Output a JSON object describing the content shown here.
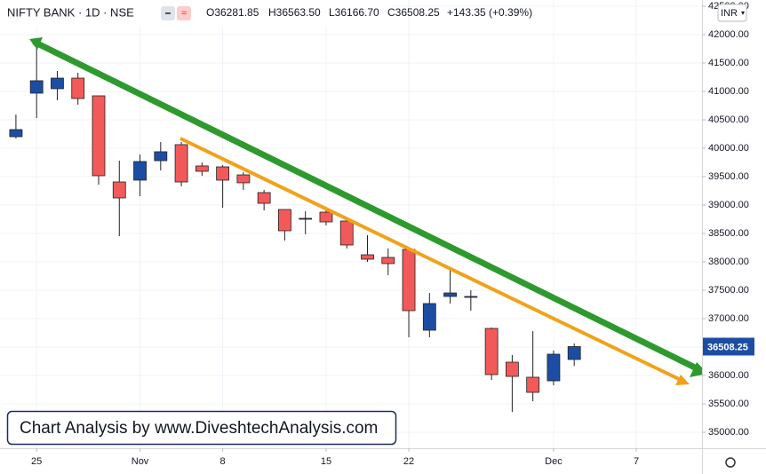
{
  "chart_data": {
    "type": "candlestick",
    "header": {
      "symbol": "NIFTY BANK · 1D · NSE",
      "open": "O36281.85",
      "high": "H36563.50",
      "low": "L36166.70",
      "close": "C36508.25",
      "change": "+143.35 (+0.39%)"
    },
    "currency": "INR",
    "watermark": "Chart Analysis by www.DiveshtechAnalysis.com",
    "x": [
      0,
      1,
      2,
      3,
      4,
      5,
      6,
      7,
      8,
      9,
      10,
      11,
      12,
      13,
      14,
      15,
      16,
      17,
      18,
      19,
      20,
      21,
      22,
      23,
      24,
      25,
      26,
      27
    ],
    "open": [
      40203,
      40969,
      41047,
      41234,
      40922,
      39406,
      39438,
      39781,
      40063,
      39688,
      39672,
      39531,
      39219,
      38922,
      38750,
      38875,
      38719,
      38125,
      38078,
      38219,
      36797,
      37391,
      37375,
      36828,
      36234,
      35969,
      35906,
      36281.85
    ],
    "high": [
      40594,
      41797,
      41359,
      41328,
      40922,
      39781,
      39891,
      40109,
      40109,
      39750,
      39703,
      39578,
      39266,
      38922,
      38891,
      38969,
      38734,
      38469,
      38234,
      38250,
      37453,
      37906,
      37500,
      36844,
      36359,
      36781,
      36438,
      36563.5
    ],
    "low": [
      40172,
      40531,
      40844,
      40766,
      39359,
      38453,
      39156,
      39609,
      39328,
      39516,
      38953,
      39266,
      38906,
      38375,
      38484,
      38641,
      38234,
      38000,
      37766,
      36672,
      36672,
      37266,
      37141,
      35922,
      35359,
      35547,
      35828,
      36166.7
    ],
    "close": [
      40328,
      41188,
      41234,
      40875,
      39516,
      39125,
      39766,
      39938,
      39406,
      39594,
      39438,
      39391,
      39031,
      38547,
      38766,
      38703,
      38297,
      38047,
      37969,
      37141,
      37266,
      37453,
      37391,
      36016,
      35984,
      35703,
      36375,
      36508.25
    ],
    "up_color": "#1b4ea3",
    "down_color": "#f25a5a",
    "xlim": [
      -0.77,
      33.18
    ],
    "xticks": [
      {
        "value": 1,
        "label": "25"
      },
      {
        "value": 6,
        "label": "Nov"
      },
      {
        "value": 10,
        "label": "8"
      },
      {
        "value": 15,
        "label": "15"
      },
      {
        "value": 19,
        "label": "22"
      },
      {
        "value": 26,
        "label": "Dec"
      },
      {
        "value": 30,
        "label": "7"
      }
    ],
    "ylim": [
      34719,
      42609
    ],
    "yticks": [
      {
        "value": 35000,
        "label": "35000.00"
      },
      {
        "value": 35500,
        "label": "35500.00"
      },
      {
        "value": 36000,
        "label": "36000.00"
      },
      {
        "value": 36500,
        "label": "36500.00"
      },
      {
        "value": 37000,
        "label": "37000.00"
      },
      {
        "value": 37500,
        "label": "37500.00"
      },
      {
        "value": 38000,
        "label": "38000.00"
      },
      {
        "value": 38500,
        "label": "38500.00"
      },
      {
        "value": 39000,
        "label": "39000.00"
      },
      {
        "value": 39500,
        "label": "39500.00"
      },
      {
        "value": 40000,
        "label": "40000.00"
      },
      {
        "value": 40500,
        "label": "40500.00"
      },
      {
        "value": 41000,
        "label": "41000.00"
      },
      {
        "value": 41500,
        "label": "41500.00"
      },
      {
        "value": 42000,
        "label": "42000.00"
      },
      {
        "value": 42500,
        "label": "42500.00"
      }
    ],
    "grid": true
  }
}
